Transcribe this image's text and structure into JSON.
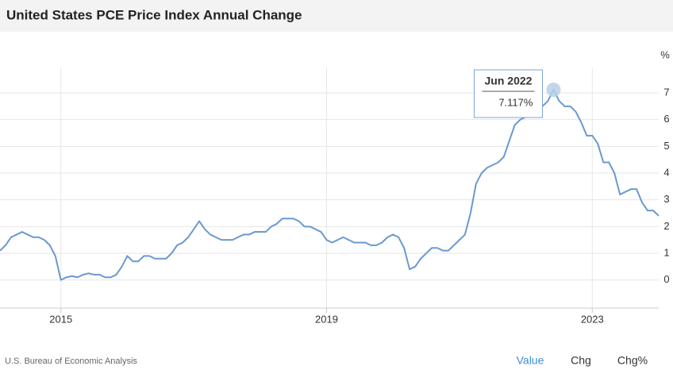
{
  "chart_data": {
    "type": "line",
    "title": "United States PCE Price Index Annual Change",
    "y_unit": "%",
    "x": [
      "Feb 2014",
      "Mar 2014",
      "Apr 2014",
      "May 2014",
      "Jun 2014",
      "Jul 2014",
      "Aug 2014",
      "Sep 2014",
      "Oct 2014",
      "Nov 2014",
      "Dec 2014",
      "Jan 2015",
      "Feb 2015",
      "Mar 2015",
      "Apr 2015",
      "May 2015",
      "Jun 2015",
      "Jul 2015",
      "Aug 2015",
      "Sep 2015",
      "Oct 2015",
      "Nov 2015",
      "Dec 2015",
      "Jan 2016",
      "Feb 2016",
      "Mar 2016",
      "Apr 2016",
      "May 2016",
      "Jun 2016",
      "Jul 2016",
      "Aug 2016",
      "Sep 2016",
      "Oct 2016",
      "Nov 2016",
      "Dec 2016",
      "Jan 2017",
      "Feb 2017",
      "Mar 2017",
      "Apr 2017",
      "May 2017",
      "Jun 2017",
      "Jul 2017",
      "Aug 2017",
      "Sep 2017",
      "Oct 2017",
      "Nov 2017",
      "Dec 2017",
      "Jan 2018",
      "Feb 2018",
      "Mar 2018",
      "Apr 2018",
      "May 2018",
      "Jun 2018",
      "Jul 2018",
      "Aug 2018",
      "Sep 2018",
      "Oct 2018",
      "Nov 2018",
      "Dec 2018",
      "Jan 2019",
      "Feb 2019",
      "Mar 2019",
      "Apr 2019",
      "May 2019",
      "Jun 2019",
      "Jul 2019",
      "Aug 2019",
      "Sep 2019",
      "Oct 2019",
      "Nov 2019",
      "Dec 2019",
      "Jan 2020",
      "Feb 2020",
      "Mar 2020",
      "Apr 2020",
      "May 2020",
      "Jun 2020",
      "Jul 2020",
      "Aug 2020",
      "Sep 2020",
      "Oct 2020",
      "Nov 2020",
      "Dec 2020",
      "Jan 2021",
      "Feb 2021",
      "Mar 2021",
      "Apr 2021",
      "May 2021",
      "Jun 2021",
      "Jul 2021",
      "Aug 2021",
      "Sep 2021",
      "Oct 2021",
      "Nov 2021",
      "Dec 2021",
      "Jan 2022",
      "Feb 2022",
      "Mar 2022",
      "Apr 2022",
      "May 2022",
      "Jun 2022",
      "Jul 2022",
      "Aug 2022",
      "Sep 2022",
      "Oct 2022",
      "Nov 2022",
      "Dec 2022",
      "Jan 2023",
      "Feb 2023",
      "Mar 2023",
      "Apr 2023",
      "May 2023",
      "Jun 2023",
      "Jul 2023",
      "Aug 2023",
      "Sep 2023",
      "Oct 2023",
      "Nov 2023",
      "Dec 2023",
      "Jan 2024"
    ],
    "series": [
      {
        "color": "#6a99d0",
        "values": [
          1.1,
          1.3,
          1.6,
          1.7,
          1.8,
          1.7,
          1.6,
          1.6,
          1.5,
          1.3,
          0.9,
          0.0,
          0.1,
          0.15,
          0.1,
          0.2,
          0.25,
          0.2,
          0.2,
          0.1,
          0.1,
          0.2,
          0.5,
          0.9,
          0.7,
          0.7,
          0.9,
          0.9,
          0.8,
          0.8,
          0.8,
          1.0,
          1.3,
          1.4,
          1.6,
          1.9,
          2.2,
          1.9,
          1.7,
          1.6,
          1.5,
          1.5,
          1.5,
          1.6,
          1.7,
          1.7,
          1.8,
          1.8,
          1.8,
          2.0,
          2.1,
          2.3,
          2.3,
          2.3,
          2.2,
          2.0,
          2.0,
          1.9,
          1.8,
          1.5,
          1.4,
          1.5,
          1.6,
          1.5,
          1.4,
          1.4,
          1.4,
          1.3,
          1.3,
          1.4,
          1.6,
          1.7,
          1.6,
          1.2,
          0.4,
          0.5,
          0.8,
          1.0,
          1.2,
          1.2,
          1.1,
          1.1,
          1.3,
          1.5,
          1.7,
          2.5,
          3.6,
          4.0,
          4.2,
          4.3,
          4.4,
          4.6,
          5.2,
          5.8,
          6.0,
          6.1,
          6.6,
          6.8,
          6.5,
          6.7,
          7.117,
          6.7,
          6.5,
          6.5,
          6.3,
          5.9,
          5.4,
          5.4,
          5.1,
          4.4,
          4.4,
          4.0,
          3.2,
          3.3,
          3.4,
          3.4,
          2.9,
          2.6,
          2.6,
          2.4
        ]
      }
    ],
    "xlim": [
      "Feb 2014",
      "Jan 2024"
    ],
    "xticks": [
      2015,
      2019,
      2023
    ],
    "ylim": [
      -1.05,
      7.95
    ],
    "yticks": [
      0,
      1,
      2,
      3,
      4,
      5,
      6,
      7
    ],
    "grid": true,
    "tooltip": {
      "label": "Jun 2022",
      "value": 7.117,
      "value_label": "7.117%"
    }
  },
  "footer": {
    "source": "U.S. Bureau of Economic Analysis",
    "tabs": [
      "Value",
      "Chg",
      "Chg%"
    ]
  }
}
